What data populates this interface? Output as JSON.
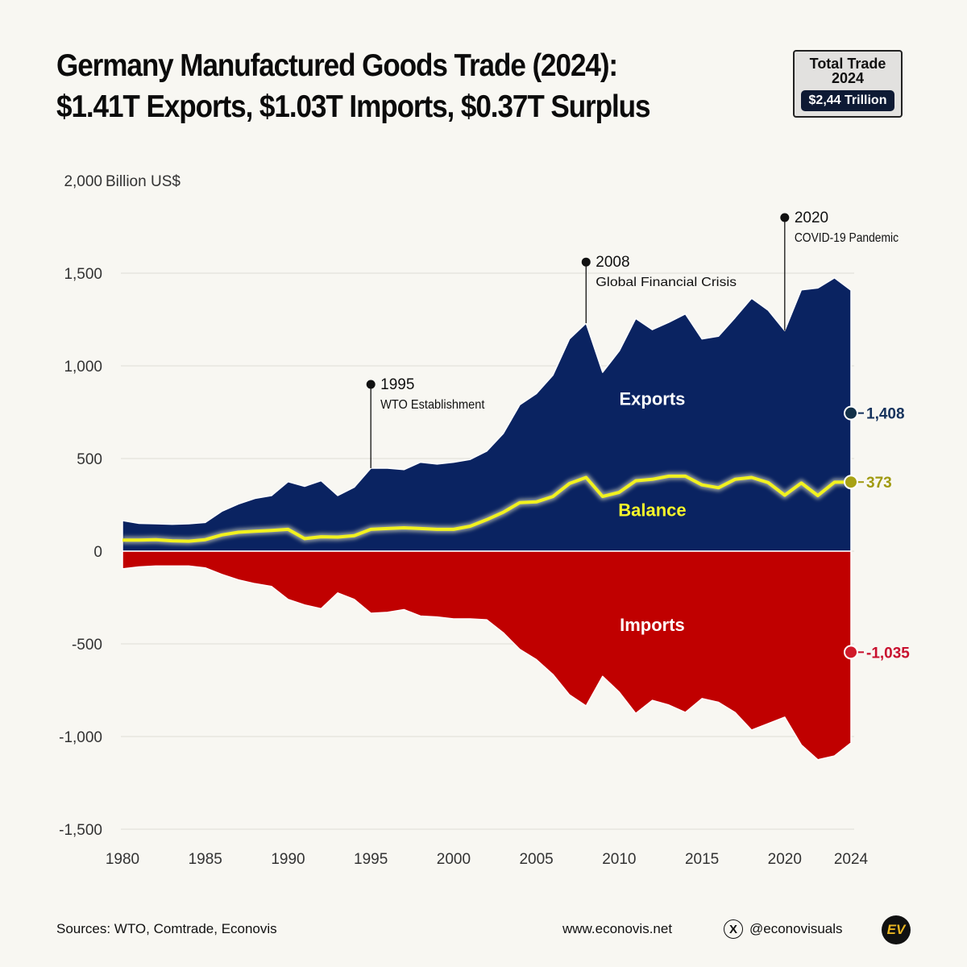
{
  "header": {
    "title_line1": "Germany Manufactured Goods Trade (2024):",
    "title_line2": "$1.41T Exports, $1.03T Imports, $0.37T Surplus"
  },
  "badge": {
    "line1": "Total Trade",
    "line2": "2024",
    "value": "$2,44 Trillion"
  },
  "footer": {
    "sources": "Sources: WTO, Comtrade, Econovis",
    "website": "www.econovis.net",
    "x_icon": "x-logo-icon",
    "handle": "@econovisuals",
    "logo_text": "EV"
  },
  "colors": {
    "exports": "#0a2361",
    "imports": "#c00000",
    "balance": "#f2f21e",
    "exports_label": "#ffffff",
    "balance_label": "#f5f52a",
    "imports_label": "#ffffff",
    "exports_end": "#123048",
    "balance_end": "#a8a214",
    "imports_end": "#d11a2a"
  },
  "chart_data": {
    "type": "area",
    "ylabel": "Billion US$",
    "ylim": [
      -1500,
      2000
    ],
    "yticks": [
      -1500,
      -1000,
      -500,
      0,
      500,
      1000,
      1500,
      2000
    ],
    "ytick_labels": [
      "-1,500",
      "-1,000",
      "-500",
      "0",
      "500",
      "1,000",
      "1,500",
      "2,000"
    ],
    "xlim": [
      1980,
      2024
    ],
    "xticks": [
      1980,
      1985,
      1990,
      1995,
      2000,
      2005,
      2010,
      2015,
      2020,
      2024
    ],
    "grid": "horizontal",
    "x": [
      1980,
      1981,
      1982,
      1983,
      1984,
      1985,
      1986,
      1987,
      1988,
      1989,
      1990,
      1991,
      1992,
      1993,
      1994,
      1995,
      1996,
      1997,
      1998,
      1999,
      2000,
      2001,
      2002,
      2003,
      2004,
      2005,
      2006,
      2007,
      2008,
      2009,
      2010,
      2011,
      2012,
      2013,
      2014,
      2015,
      2016,
      2017,
      2018,
      2019,
      2020,
      2021,
      2022,
      2023,
      2024
    ],
    "series": [
      {
        "name": "Exports",
        "values": [
          165,
          150,
          148,
          145,
          148,
          155,
          215,
          255,
          285,
          300,
          375,
          350,
          380,
          300,
          345,
          448,
          448,
          440,
          480,
          470,
          480,
          495,
          540,
          635,
          790,
          850,
          950,
          1145,
          1230,
          965,
          1080,
          1255,
          1195,
          1235,
          1280,
          1145,
          1160,
          1260,
          1365,
          1300,
          1190,
          1410,
          1420,
          1475,
          1408
        ]
      },
      {
        "name": "Imports",
        "values": [
          -95,
          -85,
          -80,
          -80,
          -80,
          -90,
          -125,
          -155,
          -175,
          -190,
          -260,
          -290,
          -310,
          -225,
          -260,
          -335,
          -330,
          -315,
          -350,
          -355,
          -365,
          -365,
          -370,
          -440,
          -530,
          -585,
          -665,
          -775,
          -835,
          -675,
          -760,
          -875,
          -805,
          -830,
          -870,
          -795,
          -815,
          -870,
          -965,
          -930,
          -895,
          -1045,
          -1125,
          -1105,
          -1035
        ]
      },
      {
        "name": "Balance",
        "values": [
          60,
          60,
          62,
          56,
          54,
          62,
          88,
          102,
          108,
          112,
          118,
          68,
          78,
          76,
          84,
          118,
          122,
          126,
          122,
          118,
          118,
          135,
          170,
          210,
          262,
          266,
          295,
          365,
          398,
          295,
          318,
          380,
          388,
          405,
          405,
          358,
          342,
          388,
          398,
          370,
          302,
          368,
          300,
          372,
          373
        ]
      }
    ],
    "annotations": [
      {
        "x": 1995,
        "y": 900,
        "year": "1995",
        "text": "WTO Establishment"
      },
      {
        "x": 2008,
        "y": 1560,
        "year": "2008",
        "text": "Global Financial Crisis"
      },
      {
        "x": 2020,
        "y": 1800,
        "year": "2020",
        "text": "COVID-19 Pandemic"
      }
    ],
    "area_labels": [
      {
        "text": "Exports",
        "x": 2012,
        "y": 820
      },
      {
        "text": "Balance",
        "x": 2012,
        "y": 220
      },
      {
        "text": "Imports",
        "x": 2012,
        "y": -400
      }
    ],
    "end_labels": [
      {
        "series": "Exports",
        "text": "1,408",
        "y": 745
      },
      {
        "series": "Balance",
        "text": "373",
        "y": 373
      },
      {
        "series": "Imports",
        "text": "-1,035",
        "y": -545
      }
    ]
  }
}
